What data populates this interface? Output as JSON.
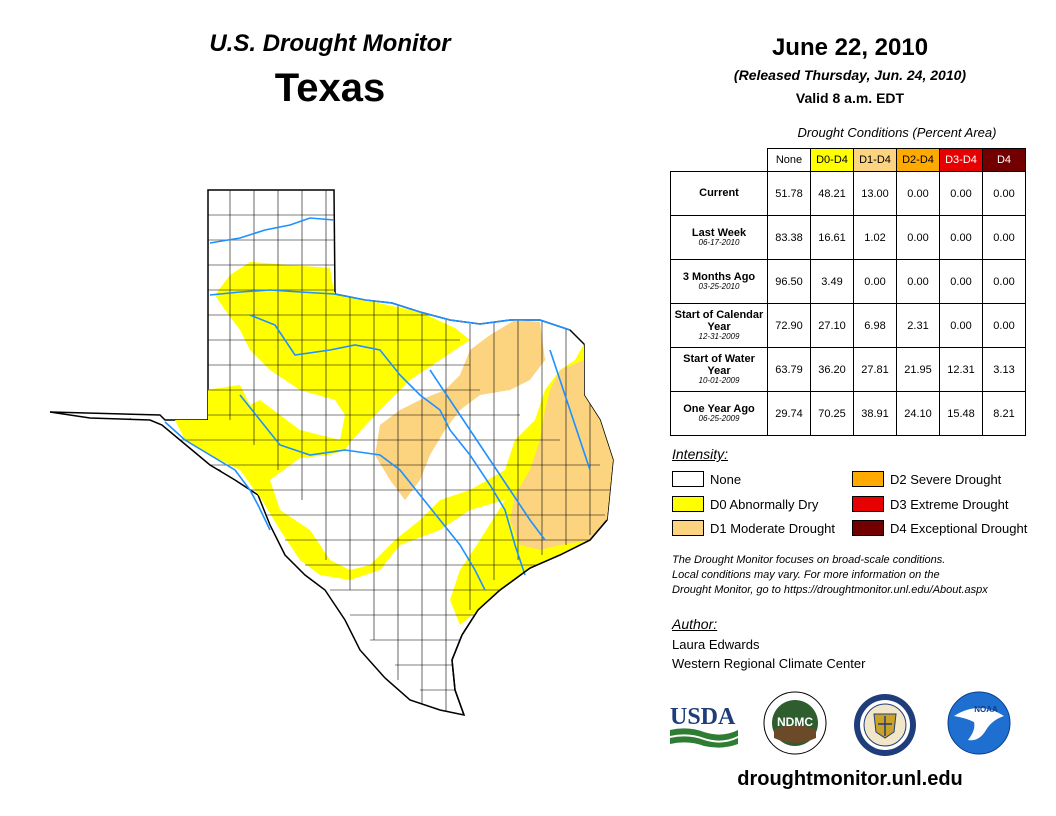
{
  "header": {
    "monitor_title": "U.S. Drought Monitor",
    "state": "Texas",
    "date": "June 22, 2010",
    "released": "(Released Thursday, Jun. 24, 2010)",
    "valid": "Valid 8 a.m. EDT"
  },
  "table": {
    "caption": "Drought Conditions (Percent Area)",
    "columns": [
      "None",
      "D0-D4",
      "D1-D4",
      "D2-D4",
      "D3-D4",
      "D4"
    ],
    "column_colors": [
      "#ffffff",
      "#ffff00",
      "#fcd37f",
      "#ffaa00",
      "#e60000",
      "#730000"
    ],
    "rows": [
      {
        "label": "Current",
        "date": "",
        "values": [
          "51.78",
          "48.21",
          "13.00",
          "0.00",
          "0.00",
          "0.00"
        ]
      },
      {
        "label": "Last Week",
        "date": "06-17-2010",
        "values": [
          "83.38",
          "16.61",
          "1.02",
          "0.00",
          "0.00",
          "0.00"
        ]
      },
      {
        "label": "3 Months Ago",
        "date": "03-25-2010",
        "values": [
          "96.50",
          "3.49",
          "0.00",
          "0.00",
          "0.00",
          "0.00"
        ]
      },
      {
        "label": "Start of Calendar Year",
        "date": "12-31-2009",
        "values": [
          "72.90",
          "27.10",
          "6.98",
          "2.31",
          "0.00",
          "0.00"
        ]
      },
      {
        "label": "Start of Water Year",
        "date": "10-01-2009",
        "values": [
          "63.79",
          "36.20",
          "27.81",
          "21.95",
          "12.31",
          "3.13"
        ]
      },
      {
        "label": "One Year Ago",
        "date": "06-25-2009",
        "values": [
          "29.74",
          "70.25",
          "38.91",
          "24.10",
          "15.48",
          "8.21"
        ]
      }
    ]
  },
  "legend": {
    "title": "Intensity:",
    "items": [
      {
        "label": "None",
        "color": "#ffffff"
      },
      {
        "label": "D0 Abnormally Dry",
        "color": "#ffff00"
      },
      {
        "label": "D1 Moderate Drought",
        "color": "#fcd37f"
      },
      {
        "label": "D2 Severe Drought",
        "color": "#ffaa00"
      },
      {
        "label": "D3 Extreme Drought",
        "color": "#e60000"
      },
      {
        "label": "D4 Exceptional Drought",
        "color": "#730000"
      }
    ]
  },
  "note": {
    "line1": "The Drought Monitor focuses on broad-scale conditions.",
    "line2": "Local conditions may vary. For more information on the",
    "line3": "Drought Monitor, go to https://droughtmonitor.unl.edu/About.aspx"
  },
  "author": {
    "title": "Author:",
    "name": "Laura Edwards",
    "org": "Western Regional Climate Center"
  },
  "logos": {
    "usda": "USDA",
    "ndmc": "NDMC",
    "noaa": "NOAA"
  },
  "footer": {
    "url": "droughtmonitor.unl.edu"
  },
  "colors": {
    "river": "#1e90ff",
    "outline": "#000000"
  }
}
